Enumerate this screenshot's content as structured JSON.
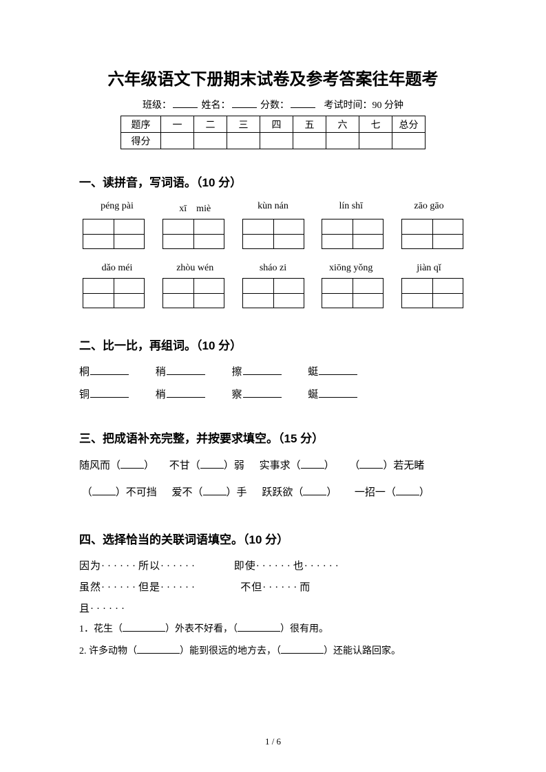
{
  "title": "六年级语文下册期末试卷及参考答案往年题考",
  "info": {
    "class_label": "班级：",
    "name_label": "姓名：",
    "score_label": "分数：",
    "time_label": "考试时间：90 分钟"
  },
  "score_table": {
    "row1_label": "题序",
    "cols": [
      "一",
      "二",
      "三",
      "四",
      "五",
      "六",
      "七",
      "总分"
    ],
    "row2_label": "得分"
  },
  "section1": {
    "heading": "一、读拼音，写词语。（10 分）",
    "pinyin_row1": [
      "péng pài",
      "xī　miè",
      "kùn nán",
      "lín shī",
      "zāo gāo"
    ],
    "pinyin_row2": [
      "dǎo méi",
      "zhòu wén",
      "sháo zi",
      "xiōng yǒng",
      "jiàn qǐ"
    ]
  },
  "section2": {
    "heading": "二、比一比，再组词。（10 分）",
    "line1": [
      "桐",
      "稍",
      "擦",
      "蜓"
    ],
    "line2": [
      "铜",
      "梢",
      "察",
      "蜒"
    ]
  },
  "section3": {
    "heading": "三、把成语补充完整，并按要求填空。（15 分）",
    "line1_parts": [
      "随风而（",
      "）",
      "不甘（",
      "）弱",
      "实事求（",
      "）",
      "（",
      "）若无睹"
    ],
    "line2_parts": [
      "（",
      "）不可挡",
      "爱不（",
      "）手",
      "跃跃欲（",
      "）",
      "一招一（",
      "）"
    ]
  },
  "section4": {
    "heading": "四、选择恰当的关联词语填空。（10 分）",
    "conj1a": "因为",
    "conj1b": "所以",
    "conj2a": "即使",
    "conj2b": "也",
    "conj3a": "虽然",
    "conj3b": "但是",
    "conj4a": "不但",
    "conj4b": "而",
    "conj4c": "且",
    "q1_a": "1．花生（",
    "q1_b": "）外表不好看，（",
    "q1_c": "）很有用。",
    "q2_a": "2. 许多动物（",
    "q2_b": "）能到很远的地方去，（",
    "q2_c": "）还能认路回家。"
  },
  "page": "1 / 6"
}
